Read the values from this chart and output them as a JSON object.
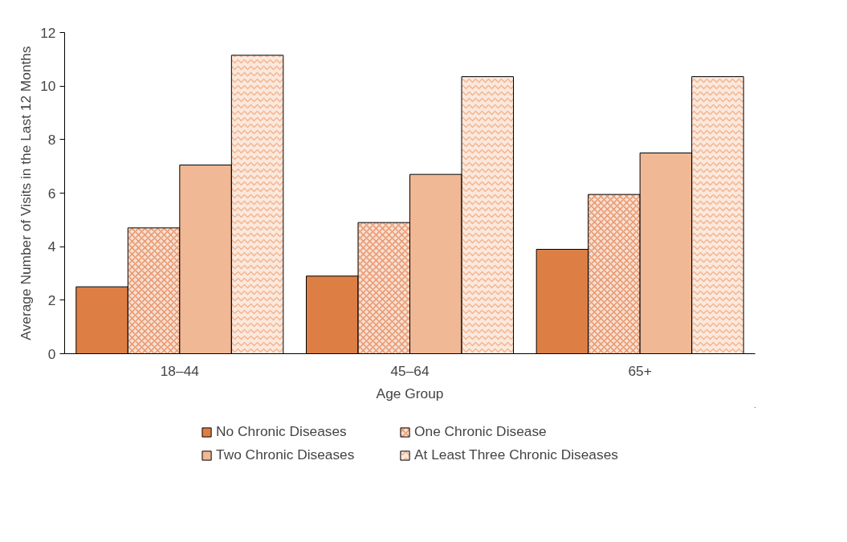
{
  "chart_data": {
    "type": "bar",
    "xlabel": "Age Group",
    "ylabel": "Average Number of Visits in the Last 12 Months",
    "categories": [
      "18–44",
      "45–64",
      "65+"
    ],
    "series": [
      {
        "name": "No Chronic Diseases",
        "color": "#dd7f45",
        "values": [
          2.5,
          2.9,
          3.9
        ]
      },
      {
        "name": "One Chronic Disease",
        "color": "#e8956a",
        "values": [
          4.7,
          4.9,
          5.95
        ]
      },
      {
        "name": "Two Chronic Diseases",
        "color": "#f0b894",
        "values": [
          7.05,
          6.7,
          7.5
        ]
      },
      {
        "name": "At Least Three Chronic Diseases",
        "color": "#f2b48e",
        "values": [
          11.15,
          10.35,
          10.35
        ]
      }
    ],
    "ylim": [
      0,
      12
    ],
    "yticks": [
      0,
      2,
      4,
      6,
      8,
      10,
      12
    ],
    "grid": false,
    "legend": "bottom"
  }
}
